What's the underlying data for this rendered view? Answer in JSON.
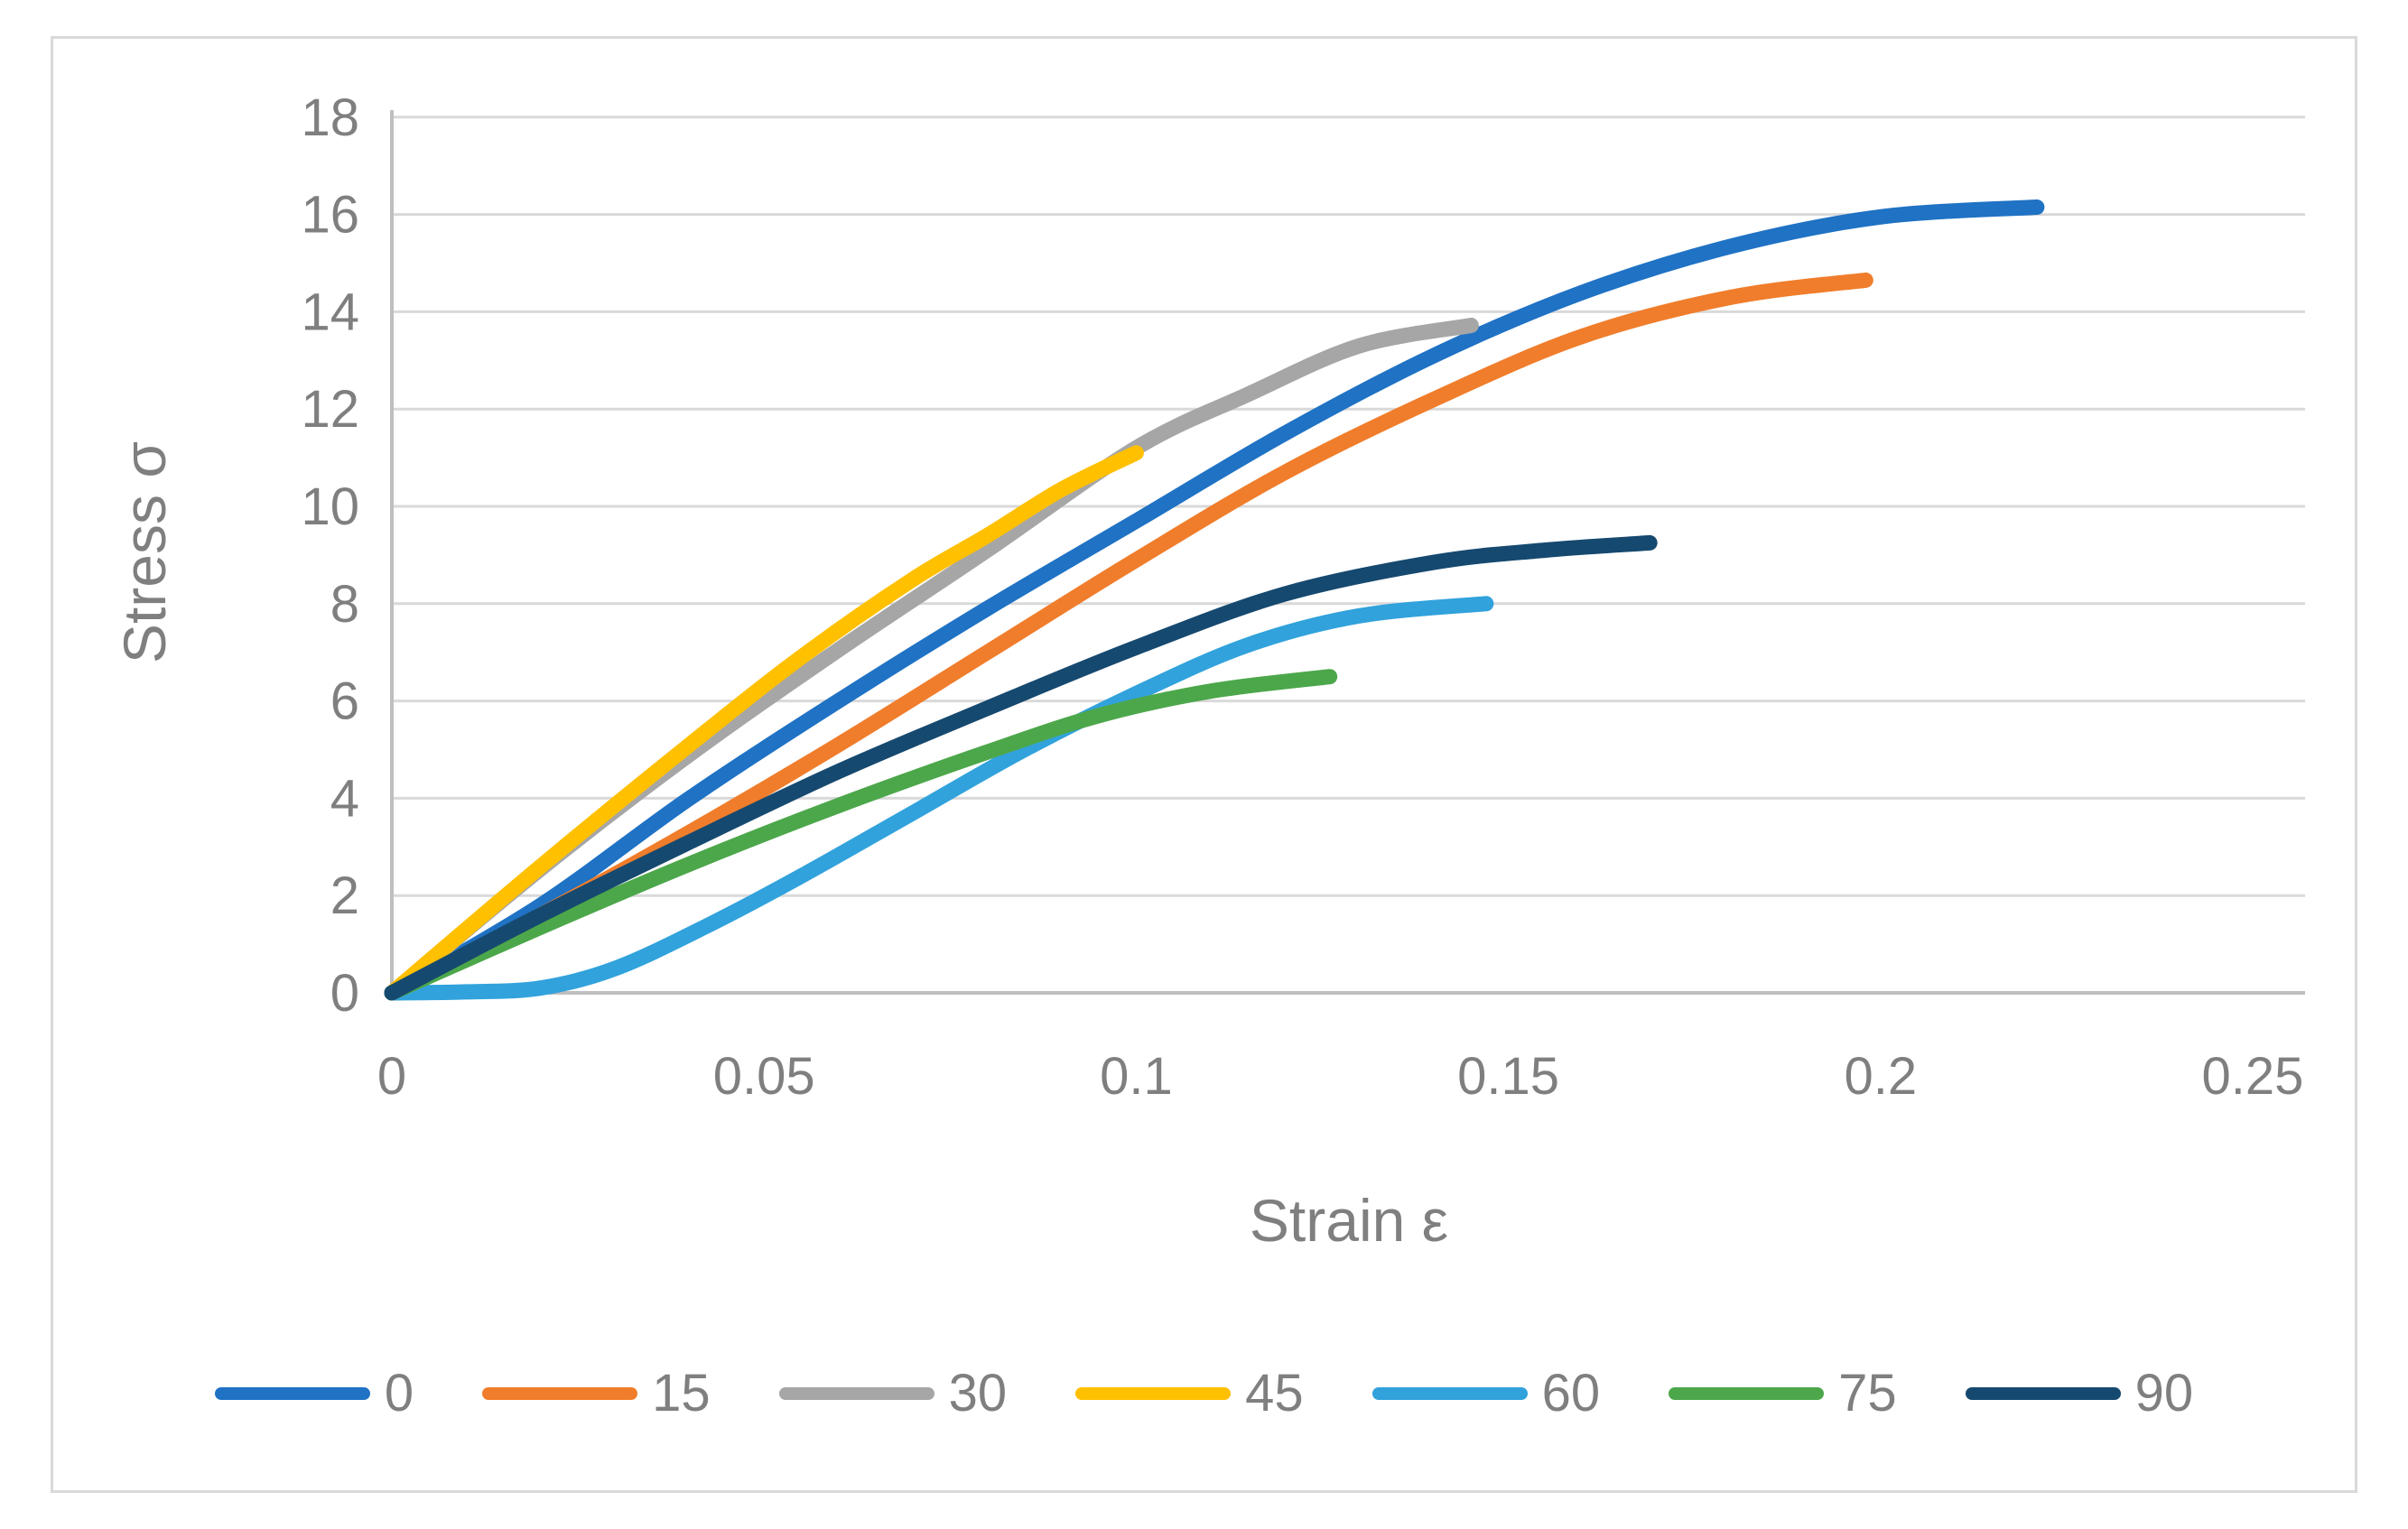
{
  "figure": {
    "background": "#ffffff",
    "border_color": "#d9d9d9",
    "gridline_color": "#d9d9d9",
    "axis_line_color": "#bfbfbf",
    "tick_label_color": "#7f7f7f",
    "axis_title_color": "#7f7f7f"
  },
  "chart_data": {
    "type": "line",
    "title": "",
    "xlabel": "Strain ε",
    "ylabel": "Stress σ",
    "xlim": [
      0,
      0.25
    ],
    "ylim": [
      0,
      18
    ],
    "grid": "horizontal",
    "legend_position": "bottom",
    "x_tick_values": [
      0,
      0.05,
      0.1,
      0.15,
      0.2,
      0.25
    ],
    "x_tick_labels": [
      "0",
      "0.05",
      "0.1",
      "0.15",
      "0.2",
      "0.25"
    ],
    "y_tick_values": [
      0,
      2,
      4,
      6,
      8,
      10,
      12,
      14,
      16,
      18
    ],
    "y_tick_labels": [
      "0",
      "2",
      "4",
      "6",
      "8",
      "10",
      "12",
      "14",
      "16",
      "18"
    ],
    "series": [
      {
        "name": "0",
        "color": "#1f72c4",
        "points": [
          [
            0,
            0
          ],
          [
            0.02,
            1.8
          ],
          [
            0.04,
            4.0
          ],
          [
            0.06,
            6.0
          ],
          [
            0.08,
            7.9
          ],
          [
            0.1,
            9.7
          ],
          [
            0.12,
            11.5
          ],
          [
            0.14,
            13.1
          ],
          [
            0.16,
            14.4
          ],
          [
            0.18,
            15.35
          ],
          [
            0.2,
            15.95
          ],
          [
            0.221,
            16.15
          ]
        ]
      },
      {
        "name": "15",
        "color": "#f07d2b",
        "points": [
          [
            0,
            0
          ],
          [
            0.02,
            1.6
          ],
          [
            0.04,
            3.3
          ],
          [
            0.06,
            5.1
          ],
          [
            0.08,
            7.0
          ],
          [
            0.1,
            8.9
          ],
          [
            0.12,
            10.7
          ],
          [
            0.14,
            12.2
          ],
          [
            0.16,
            13.5
          ],
          [
            0.18,
            14.3
          ],
          [
            0.198,
            14.65
          ]
        ]
      },
      {
        "name": "30",
        "color": "#a6a6a6",
        "points": [
          [
            0,
            0
          ],
          [
            0.02,
            2.55
          ],
          [
            0.04,
            4.9
          ],
          [
            0.06,
            7.05
          ],
          [
            0.08,
            9.1
          ],
          [
            0.1,
            11.2
          ],
          [
            0.115,
            12.3
          ],
          [
            0.13,
            13.3
          ],
          [
            0.145,
            13.72
          ]
        ]
      },
      {
        "name": "45",
        "color": "#ffc000",
        "points": [
          [
            0,
            0
          ],
          [
            0.02,
            2.6
          ],
          [
            0.04,
            5.1
          ],
          [
            0.055,
            6.9
          ],
          [
            0.07,
            8.5
          ],
          [
            0.08,
            9.4
          ],
          [
            0.09,
            10.35
          ],
          [
            0.1,
            11.1
          ]
        ]
      },
      {
        "name": "60",
        "color": "#31a2dc",
        "points": [
          [
            0,
            0
          ],
          [
            0.01,
            0.02
          ],
          [
            0.02,
            0.1
          ],
          [
            0.03,
            0.5
          ],
          [
            0.042,
            1.35
          ],
          [
            0.055,
            2.4
          ],
          [
            0.07,
            3.7
          ],
          [
            0.085,
            5.0
          ],
          [
            0.1,
            6.15
          ],
          [
            0.115,
            7.15
          ],
          [
            0.13,
            7.75
          ],
          [
            0.147,
            8.0
          ]
        ]
      },
      {
        "name": "75",
        "color": "#4ca74a",
        "points": [
          [
            0,
            0
          ],
          [
            0.02,
            1.35
          ],
          [
            0.04,
            2.65
          ],
          [
            0.06,
            3.85
          ],
          [
            0.08,
            4.95
          ],
          [
            0.095,
            5.7
          ],
          [
            0.11,
            6.2
          ],
          [
            0.126,
            6.5
          ]
        ]
      },
      {
        "name": "90",
        "color": "#16496f",
        "points": [
          [
            0,
            0
          ],
          [
            0.02,
            1.6
          ],
          [
            0.04,
            3.1
          ],
          [
            0.06,
            4.55
          ],
          [
            0.08,
            5.85
          ],
          [
            0.1,
            7.1
          ],
          [
            0.12,
            8.2
          ],
          [
            0.14,
            8.85
          ],
          [
            0.155,
            9.1
          ],
          [
            0.169,
            9.25
          ]
        ]
      }
    ]
  }
}
